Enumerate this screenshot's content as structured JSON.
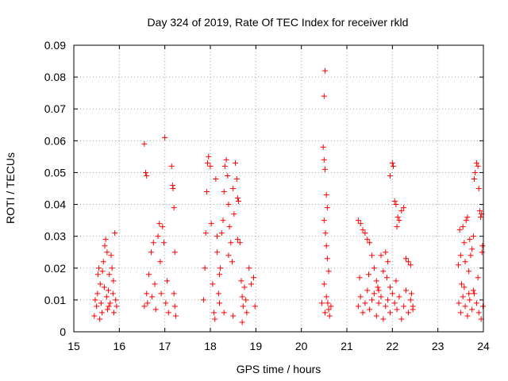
{
  "chart_data": {
    "type": "scatter",
    "title": "Day 324 of 2019, Rate Of TEC Index for receiver rkld",
    "xlabel": "GPS time / hours",
    "ylabel": "ROTI / TECUs",
    "xlim": [
      15,
      24
    ],
    "ylim": [
      0,
      0.09
    ],
    "xticks": [
      15,
      16,
      17,
      18,
      19,
      20,
      21,
      22,
      23,
      24
    ],
    "yticks": [
      0,
      0.01,
      0.02,
      0.03,
      0.04,
      0.05,
      0.06,
      0.07,
      0.08,
      0.09
    ],
    "xtick_labels": [
      "15",
      "16",
      "17",
      "18",
      "19",
      "20",
      "21",
      "22",
      "23",
      "24"
    ],
    "ytick_labels": [
      "0",
      "0.01",
      "0.02",
      "0.03",
      "0.04",
      "0.05",
      "0.06",
      "0.07",
      "0.08",
      "0.09"
    ],
    "grid": true,
    "marker": "+",
    "marker_color": "#ff0000",
    "series": [
      {
        "name": "ROTI",
        "points": [
          [
            15.45,
            0.005
          ],
          [
            15.5,
            0.008
          ],
          [
            15.52,
            0.012
          ],
          [
            15.55,
            0.02
          ],
          [
            15.58,
            0.015
          ],
          [
            15.6,
            0.009
          ],
          [
            15.62,
            0.006
          ],
          [
            15.65,
            0.022
          ],
          [
            15.68,
            0.027
          ],
          [
            15.7,
            0.029
          ],
          [
            15.72,
            0.011
          ],
          [
            15.74,
            0.007
          ],
          [
            15.76,
            0.013
          ],
          [
            15.78,
            0.018
          ],
          [
            15.8,
            0.009
          ],
          [
            15.82,
            0.024
          ],
          [
            15.84,
            0.02
          ],
          [
            15.86,
            0.012
          ],
          [
            15.88,
            0.006
          ],
          [
            15.9,
            0.031
          ],
          [
            15.92,
            0.01
          ],
          [
            15.94,
            0.008
          ],
          [
            15.47,
            0.01
          ],
          [
            15.57,
            0.004
          ],
          [
            15.67,
            0.014
          ],
          [
            15.77,
            0.008
          ],
          [
            15.87,
            0.016
          ],
          [
            15.53,
            0.018
          ],
          [
            15.63,
            0.019
          ],
          [
            15.73,
            0.025
          ],
          [
            16.55,
            0.059
          ],
          [
            16.58,
            0.05
          ],
          [
            16.6,
            0.049
          ],
          [
            16.55,
            0.008
          ],
          [
            16.6,
            0.012
          ],
          [
            16.65,
            0.018
          ],
          [
            16.7,
            0.025
          ],
          [
            16.75,
            0.028
          ],
          [
            16.78,
            0.015
          ],
          [
            16.8,
            0.007
          ],
          [
            16.85,
            0.03
          ],
          [
            16.88,
            0.034
          ],
          [
            16.9,
            0.022
          ],
          [
            16.92,
            0.012
          ],
          [
            16.95,
            0.033
          ],
          [
            16.98,
            0.028
          ],
          [
            17.0,
            0.061
          ],
          [
            17.02,
            0.009
          ],
          [
            17.05,
            0.016
          ],
          [
            17.08,
            0.006
          ],
          [
            17.15,
            0.052
          ],
          [
            17.17,
            0.046
          ],
          [
            17.18,
            0.045
          ],
          [
            17.2,
            0.039
          ],
          [
            17.22,
            0.025
          ],
          [
            17.2,
            0.012
          ],
          [
            17.22,
            0.008
          ],
          [
            17.24,
            0.005
          ],
          [
            16.62,
            0.009
          ],
          [
            16.72,
            0.011
          ],
          [
            17.85,
            0.01
          ],
          [
            17.88,
            0.02
          ],
          [
            17.9,
            0.031
          ],
          [
            17.92,
            0.044
          ],
          [
            17.94,
            0.053
          ],
          [
            17.96,
            0.055
          ],
          [
            18.0,
            0.052
          ],
          [
            18.02,
            0.034
          ],
          [
            18.05,
            0.015
          ],
          [
            18.08,
            0.006
          ],
          [
            18.12,
            0.048
          ],
          [
            18.15,
            0.025
          ],
          [
            18.18,
            0.012
          ],
          [
            18.2,
            0.009
          ],
          [
            18.22,
            0.02
          ],
          [
            18.25,
            0.031
          ],
          [
            18.28,
            0.035
          ],
          [
            18.3,
            0.044
          ],
          [
            18.32,
            0.052
          ],
          [
            18.35,
            0.054
          ],
          [
            18.38,
            0.049
          ],
          [
            18.4,
            0.04
          ],
          [
            18.42,
            0.033
          ],
          [
            18.45,
            0.028
          ],
          [
            18.48,
            0.022
          ],
          [
            18.5,
            0.045
          ],
          [
            18.52,
            0.037
          ],
          [
            18.55,
            0.053
          ],
          [
            18.58,
            0.048
          ],
          [
            18.6,
            0.042
          ],
          [
            18.62,
            0.041
          ],
          [
            18.65,
            0.028
          ],
          [
            18.68,
            0.016
          ],
          [
            18.7,
            0.011
          ],
          [
            18.72,
            0.008
          ],
          [
            18.75,
            0.014
          ],
          [
            18.78,
            0.01
          ],
          [
            18.8,
            0.006
          ],
          [
            18.85,
            0.02
          ],
          [
            18.9,
            0.015
          ],
          [
            18.95,
            0.017
          ],
          [
            18.98,
            0.008
          ],
          [
            18.1,
            0.004
          ],
          [
            18.3,
            0.006
          ],
          [
            18.5,
            0.005
          ],
          [
            18.7,
            0.003
          ],
          [
            18.2,
            0.018
          ],
          [
            18.4,
            0.024
          ],
          [
            18.6,
            0.029
          ],
          [
            18.15,
            0.03
          ],
          [
            20.52,
            0.082
          ],
          [
            20.5,
            0.074
          ],
          [
            20.48,
            0.058
          ],
          [
            20.5,
            0.054
          ],
          [
            20.52,
            0.051
          ],
          [
            20.55,
            0.043
          ],
          [
            20.57,
            0.039
          ],
          [
            20.5,
            0.035
          ],
          [
            20.53,
            0.031
          ],
          [
            20.55,
            0.027
          ],
          [
            20.57,
            0.023
          ],
          [
            20.6,
            0.019
          ],
          [
            20.5,
            0.015
          ],
          [
            20.55,
            0.011
          ],
          [
            20.58,
            0.009
          ],
          [
            20.6,
            0.007
          ],
          [
            20.62,
            0.005
          ],
          [
            20.65,
            0.008
          ],
          [
            20.52,
            0.006
          ],
          [
            20.45,
            0.009
          ],
          [
            21.25,
            0.035
          ],
          [
            21.3,
            0.034
          ],
          [
            21.35,
            0.032
          ],
          [
            21.4,
            0.031
          ],
          [
            21.45,
            0.029
          ],
          [
            21.5,
            0.028
          ],
          [
            21.55,
            0.024
          ],
          [
            21.6,
            0.02
          ],
          [
            21.65,
            0.016
          ],
          [
            21.7,
            0.013
          ],
          [
            21.75,
            0.024
          ],
          [
            21.8,
            0.019
          ],
          [
            21.85,
            0.025
          ],
          [
            21.9,
            0.022
          ],
          [
            21.95,
            0.014
          ],
          [
            22.0,
            0.053
          ],
          [
            22.02,
            0.052
          ],
          [
            22.05,
            0.041
          ],
          [
            22.08,
            0.04
          ],
          [
            22.1,
            0.033
          ],
          [
            22.12,
            0.036
          ],
          [
            22.15,
            0.035
          ],
          [
            22.2,
            0.038
          ],
          [
            22.25,
            0.039
          ],
          [
            22.3,
            0.023
          ],
          [
            22.35,
            0.022
          ],
          [
            22.4,
            0.021
          ],
          [
            22.42,
            0.012
          ],
          [
            22.45,
            0.008
          ],
          [
            21.95,
            0.049
          ],
          [
            21.25,
            0.008
          ],
          [
            21.3,
            0.011
          ],
          [
            21.35,
            0.006
          ],
          [
            21.4,
            0.009
          ],
          [
            21.45,
            0.013
          ],
          [
            21.5,
            0.007
          ],
          [
            21.55,
            0.01
          ],
          [
            21.6,
            0.012
          ],
          [
            21.65,
            0.005
          ],
          [
            21.7,
            0.009
          ],
          [
            21.75,
            0.011
          ],
          [
            21.8,
            0.004
          ],
          [
            21.85,
            0.008
          ],
          [
            21.9,
            0.01
          ],
          [
            21.95,
            0.006
          ],
          [
            22.0,
            0.012
          ],
          [
            22.05,
            0.009
          ],
          [
            22.1,
            0.007
          ],
          [
            22.15,
            0.011
          ],
          [
            22.2,
            0.004
          ],
          [
            22.25,
            0.008
          ],
          [
            22.3,
            0.013
          ],
          [
            22.35,
            0.006
          ],
          [
            22.4,
            0.01
          ],
          [
            22.45,
            0.007
          ],
          [
            21.28,
            0.017
          ],
          [
            21.48,
            0.018
          ],
          [
            21.68,
            0.014
          ],
          [
            21.88,
            0.017
          ],
          [
            22.08,
            0.016
          ],
          [
            23.45,
            0.021
          ],
          [
            23.48,
            0.032
          ],
          [
            23.5,
            0.024
          ],
          [
            23.52,
            0.015
          ],
          [
            23.55,
            0.033
          ],
          [
            23.58,
            0.028
          ],
          [
            23.6,
            0.022
          ],
          [
            23.62,
            0.035
          ],
          [
            23.65,
            0.036
          ],
          [
            23.68,
            0.019
          ],
          [
            23.7,
            0.029
          ],
          [
            23.72,
            0.024
          ],
          [
            23.75,
            0.026
          ],
          [
            23.78,
            0.03
          ],
          [
            23.8,
            0.048
          ],
          [
            23.82,
            0.05
          ],
          [
            23.85,
            0.053
          ],
          [
            23.88,
            0.052
          ],
          [
            23.9,
            0.045
          ],
          [
            23.92,
            0.038
          ],
          [
            23.94,
            0.036
          ],
          [
            23.96,
            0.037
          ],
          [
            23.98,
            0.027
          ],
          [
            23.97,
            0.025
          ],
          [
            23.46,
            0.009
          ],
          [
            23.5,
            0.006
          ],
          [
            23.55,
            0.011
          ],
          [
            23.6,
            0.008
          ],
          [
            23.65,
            0.005
          ],
          [
            23.7,
            0.01
          ],
          [
            23.75,
            0.007
          ],
          [
            23.8,
            0.012
          ],
          [
            23.85,
            0.009
          ],
          [
            23.9,
            0.006
          ],
          [
            23.95,
            0.004
          ],
          [
            23.99,
            0.008
          ],
          [
            23.58,
            0.014
          ],
          [
            23.78,
            0.013
          ],
          [
            23.88,
            0.017
          ],
          [
            23.68,
            0.012
          ]
        ]
      }
    ]
  }
}
